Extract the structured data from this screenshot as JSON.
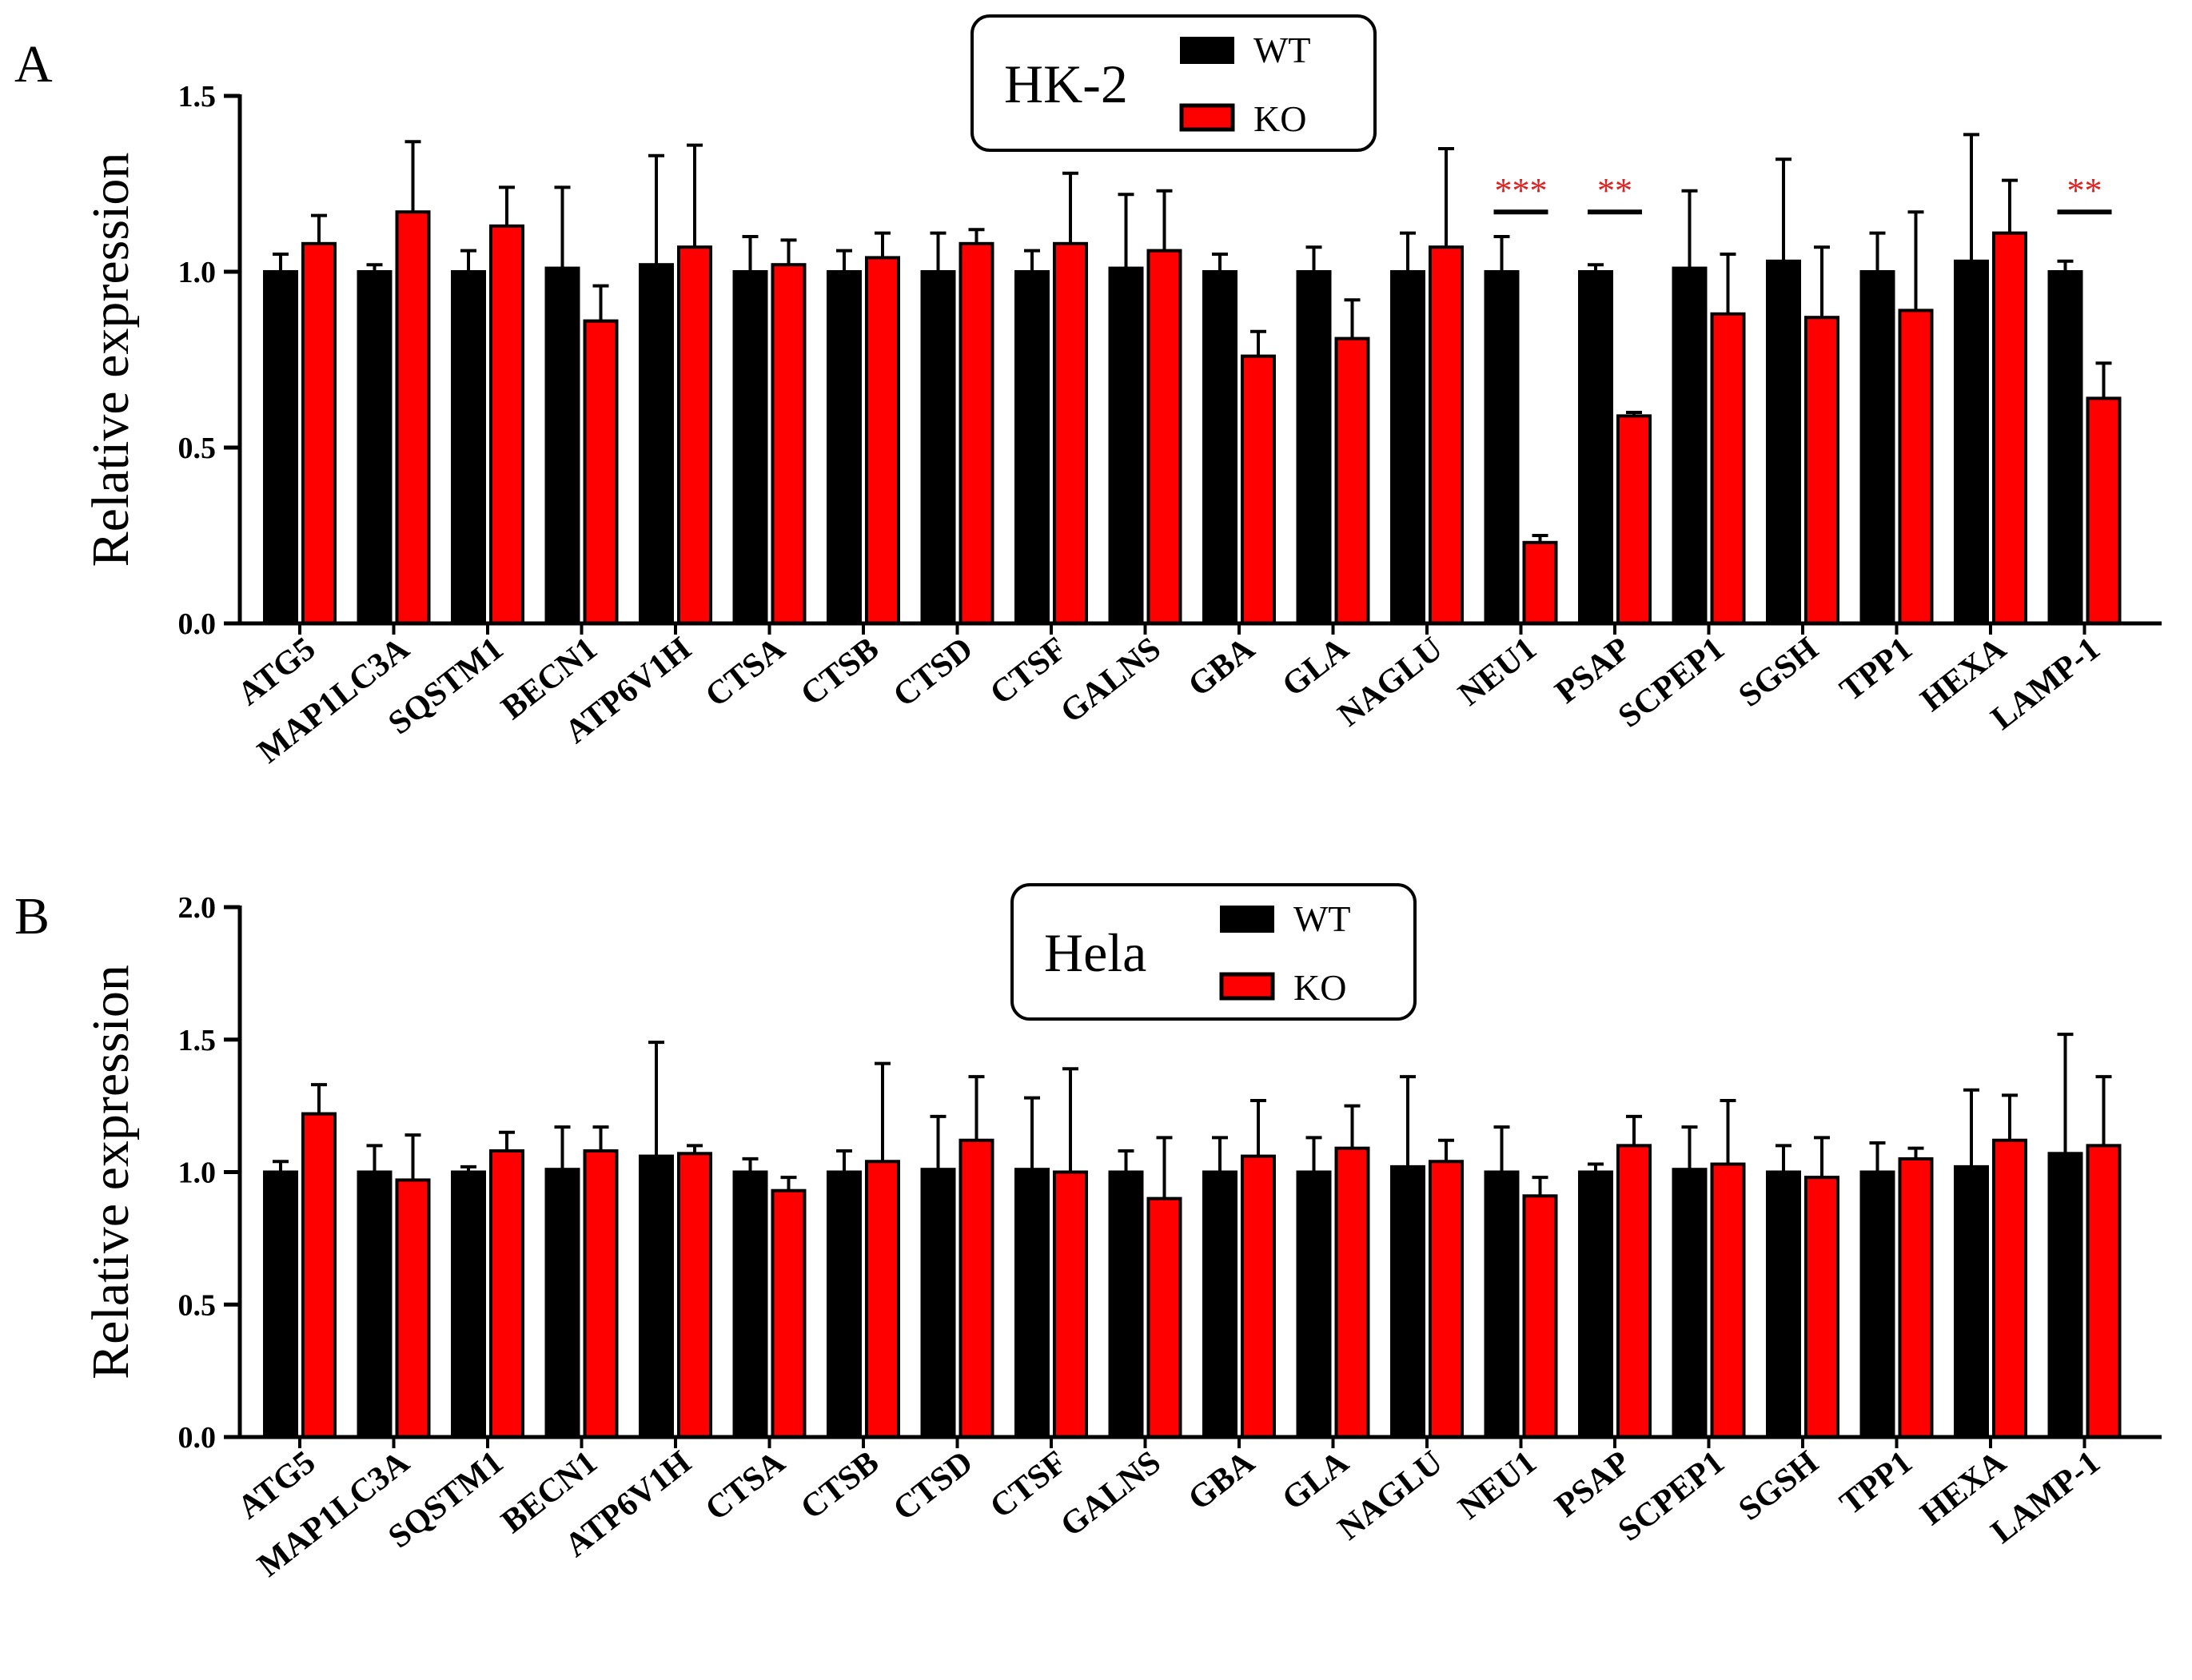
{
  "colors": {
    "wt": "#000000",
    "ko": "#ff0000",
    "axis": "#000000",
    "significance": "#e02020"
  },
  "chart_data": [
    {
      "panel": "A",
      "type": "bar",
      "legend_title": "HK-2",
      "series_names": [
        "WT",
        "KO"
      ],
      "ylabel": "Relative expression",
      "ylim": [
        0,
        1.5
      ],
      "yticks": [
        "0.0",
        "0.5",
        "1.0",
        "1.5"
      ],
      "categories": [
        "ATG5",
        "MAP1LC3A",
        "SQSTM1",
        "BECN1",
        "ATP6V1H",
        "CTSA",
        "CTSB",
        "CTSD",
        "CTSF",
        "GALNS",
        "GBA",
        "GLA",
        "NAGLU",
        "NEU1",
        "PSAP",
        "SCPEP1",
        "SGSH",
        "TPP1",
        "HEXA",
        "LAMP-1"
      ],
      "series": [
        {
          "name": "WT",
          "values": [
            1.0,
            1.0,
            1.0,
            1.01,
            1.02,
            1.0,
            1.0,
            1.0,
            1.0,
            1.01,
            1.0,
            1.0,
            1.0,
            1.0,
            1.0,
            1.01,
            1.03,
            1.0,
            1.03,
            1.0
          ],
          "errors": [
            0.05,
            0.02,
            0.06,
            0.23,
            0.31,
            0.1,
            0.06,
            0.11,
            0.06,
            0.21,
            0.05,
            0.07,
            0.11,
            0.1,
            0.02,
            0.22,
            0.29,
            0.11,
            0.36,
            0.03
          ]
        },
        {
          "name": "KO",
          "values": [
            1.08,
            1.17,
            1.13,
            0.86,
            1.07,
            1.02,
            1.04,
            1.08,
            1.08,
            1.06,
            0.76,
            0.81,
            1.07,
            0.23,
            0.59,
            0.88,
            0.87,
            0.89,
            1.11,
            0.64
          ],
          "errors": [
            0.08,
            0.2,
            0.11,
            0.1,
            0.29,
            0.07,
            0.07,
            0.04,
            0.2,
            0.17,
            0.07,
            0.11,
            0.28,
            0.02,
            0.01,
            0.17,
            0.2,
            0.28,
            0.15,
            0.1
          ]
        }
      ],
      "significance": [
        {
          "category": "NEU1",
          "label": "***"
        },
        {
          "category": "PSAP",
          "label": "**"
        },
        {
          "category": "LAMP-1",
          "label": "**"
        }
      ]
    },
    {
      "panel": "B",
      "type": "bar",
      "legend_title": "Hela",
      "series_names": [
        "WT",
        "KO"
      ],
      "ylabel": "Relative expression",
      "ylim": [
        0,
        2.0
      ],
      "yticks": [
        "0.0",
        "0.5",
        "1.0",
        "1.5",
        "2.0"
      ],
      "categories": [
        "ATG5",
        "MAP1LC3A",
        "SQSTM1",
        "BECN1",
        "ATP6V1H",
        "CTSA",
        "CTSB",
        "CTSD",
        "CTSF",
        "GALNS",
        "GBA",
        "GLA",
        "NAGLU",
        "NEU1",
        "PSAP",
        "SCPEP1",
        "SGSH",
        "TPP1",
        "HEXA",
        "LAMP-1"
      ],
      "series": [
        {
          "name": "WT",
          "values": [
            1.0,
            1.0,
            1.0,
            1.01,
            1.06,
            1.0,
            1.0,
            1.01,
            1.01,
            1.0,
            1.0,
            1.0,
            1.02,
            1.0,
            1.0,
            1.01,
            1.0,
            1.0,
            1.02,
            1.07
          ],
          "errors": [
            0.04,
            0.1,
            0.02,
            0.16,
            0.43,
            0.05,
            0.08,
            0.2,
            0.27,
            0.08,
            0.13,
            0.13,
            0.34,
            0.17,
            0.03,
            0.16,
            0.1,
            0.11,
            0.29,
            0.45
          ]
        },
        {
          "name": "KO",
          "values": [
            1.22,
            0.97,
            1.08,
            1.08,
            1.07,
            0.93,
            1.04,
            1.12,
            1.0,
            0.9,
            1.06,
            1.09,
            1.04,
            0.91,
            1.1,
            1.03,
            0.98,
            1.05,
            1.12,
            1.1
          ],
          "errors": [
            0.11,
            0.17,
            0.07,
            0.09,
            0.03,
            0.05,
            0.37,
            0.24,
            0.39,
            0.23,
            0.21,
            0.16,
            0.08,
            0.07,
            0.11,
            0.24,
            0.15,
            0.04,
            0.17,
            0.26
          ]
        }
      ],
      "significance": []
    }
  ]
}
